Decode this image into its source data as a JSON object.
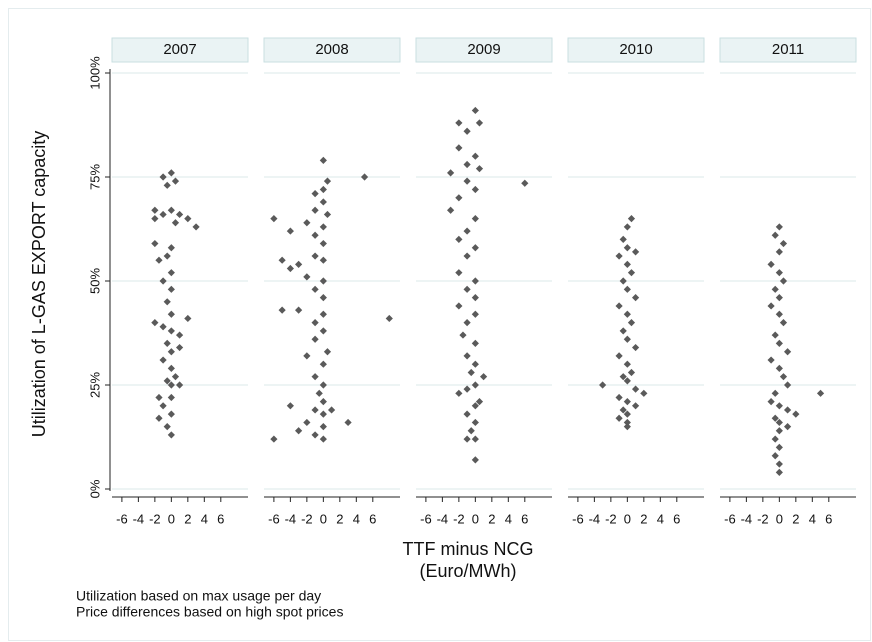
{
  "chart_data": {
    "type": "scatter",
    "ylabel": "Utilization of L-GAS EXPORT capacity",
    "xlabel": [
      "TTF minus NCG",
      "(Euro/MWh)"
    ],
    "notes": [
      "Utilization based on max usage per day",
      "Price differences based on high spot prices"
    ],
    "ylim": [
      0,
      100
    ],
    "yticks": [
      {
        "value": 0,
        "label": "0%"
      },
      {
        "value": 25,
        "label": "25%"
      },
      {
        "value": 50,
        "label": "50%"
      },
      {
        "value": 75,
        "label": "75%"
      },
      {
        "value": 100,
        "label": "100%"
      }
    ],
    "xlim": [
      -7.2,
      9.3
    ],
    "xticks": [
      -6,
      -4,
      -2,
      0,
      2,
      4,
      6
    ],
    "grid": true,
    "color": "#5a5a5a",
    "panels": [
      {
        "title": "2007",
        "x": [
          -1,
          0,
          0.5,
          -0.5,
          -2,
          -2,
          -1,
          0,
          1,
          0.5,
          2,
          3,
          -2,
          0,
          -0.5,
          -1.5,
          0,
          -1,
          0,
          -0.5,
          0,
          -2,
          -1,
          0,
          1,
          2,
          -0.5,
          0,
          1,
          -1,
          0,
          0.5,
          -0.5,
          0,
          1,
          -1.5,
          0,
          -1,
          -1.5,
          0,
          -0.5,
          0
        ],
        "y": [
          75,
          76,
          74,
          73,
          67,
          65,
          66,
          67,
          66,
          64,
          65,
          63,
          59,
          58,
          56,
          55,
          52,
          50,
          48,
          45,
          42,
          40,
          39,
          38,
          37,
          41,
          35,
          33,
          34,
          31,
          29,
          27,
          26,
          25,
          25,
          22,
          22,
          20,
          17,
          18,
          15,
          13
        ]
      },
      {
        "title": "2008",
        "x": [
          0,
          0.5,
          0,
          -1,
          5,
          0,
          -1,
          0.5,
          -6,
          -2,
          0,
          -4,
          -1,
          0,
          -5,
          -3,
          -1,
          0,
          -2,
          0,
          -4,
          -1,
          0,
          -3,
          -5,
          0,
          -1,
          8,
          0,
          -1,
          0.5,
          -2,
          0,
          -1,
          0,
          -0.5,
          0,
          -1,
          -4,
          0,
          1,
          -2,
          0,
          3,
          -3,
          -1,
          0,
          -6
        ],
        "y": [
          79,
          74,
          72,
          71,
          75,
          69,
          67,
          66,
          65,
          64,
          63,
          62,
          61,
          59,
          55,
          54,
          56,
          55,
          51,
          50,
          53,
          48,
          46,
          43,
          43,
          42,
          40,
          41,
          38,
          36,
          33,
          32,
          30,
          27,
          25,
          23,
          21,
          19,
          20,
          18,
          19,
          16,
          15,
          16,
          14,
          13,
          12,
          12
        ]
      },
      {
        "title": "2009",
        "x": [
          0,
          -2,
          0.5,
          -1,
          -2,
          0,
          -1,
          0.5,
          -3,
          6,
          -1,
          0,
          -2,
          -3,
          0,
          -1,
          -2,
          0,
          -1,
          -2,
          0,
          -1,
          0,
          -2,
          0,
          -1,
          -1.5,
          0,
          -1,
          0,
          -0.5,
          1,
          0,
          -1,
          -2,
          0.5,
          0,
          -1,
          0,
          -0.5,
          0,
          -1,
          0
        ],
        "y": [
          91,
          88,
          88,
          86,
          82,
          80,
          78,
          77,
          76,
          73.5,
          74,
          72,
          70,
          67,
          65,
          62,
          60,
          58,
          56,
          52,
          50,
          48,
          46,
          44,
          42,
          40,
          37,
          35,
          32,
          30,
          28,
          27,
          25,
          24,
          23,
          21,
          20,
          18,
          16,
          14,
          12,
          12,
          7
        ]
      },
      {
        "title": "2010",
        "x": [
          0.5,
          0,
          -0.5,
          0,
          1,
          -1,
          0,
          0.5,
          -0.5,
          0,
          1,
          -1,
          0,
          0.5,
          -0.5,
          0,
          1,
          -1,
          0,
          0.5,
          -0.5,
          0,
          -3,
          1,
          2,
          -1,
          0,
          1,
          -0.5,
          0,
          -1,
          0,
          0
        ],
        "y": [
          65,
          63,
          60,
          58,
          57,
          56,
          54,
          52,
          50,
          48,
          46,
          44,
          42,
          40,
          38,
          36,
          34,
          32,
          30,
          28,
          27,
          26,
          25,
          24,
          23,
          22,
          21,
          20,
          19,
          18,
          17,
          16,
          15
        ]
      },
      {
        "title": "2011",
        "x": [
          0,
          -0.5,
          0.5,
          0,
          -1,
          0,
          0.5,
          -0.5,
          0,
          -1,
          0,
          0.5,
          -0.5,
          0,
          1,
          -1,
          0,
          0.5,
          1,
          -0.5,
          5,
          -1,
          0,
          1,
          2,
          -0.5,
          0,
          1,
          0,
          -0.5,
          0,
          -0.5,
          0,
          0
        ],
        "y": [
          63,
          61,
          59,
          57,
          54,
          52,
          50,
          48,
          46,
          44,
          42,
          40,
          37,
          35,
          33,
          31,
          29,
          27,
          25,
          23,
          23,
          21,
          20,
          19,
          18,
          17,
          16,
          15,
          14,
          12,
          10,
          8,
          6,
          4
        ]
      }
    ]
  }
}
